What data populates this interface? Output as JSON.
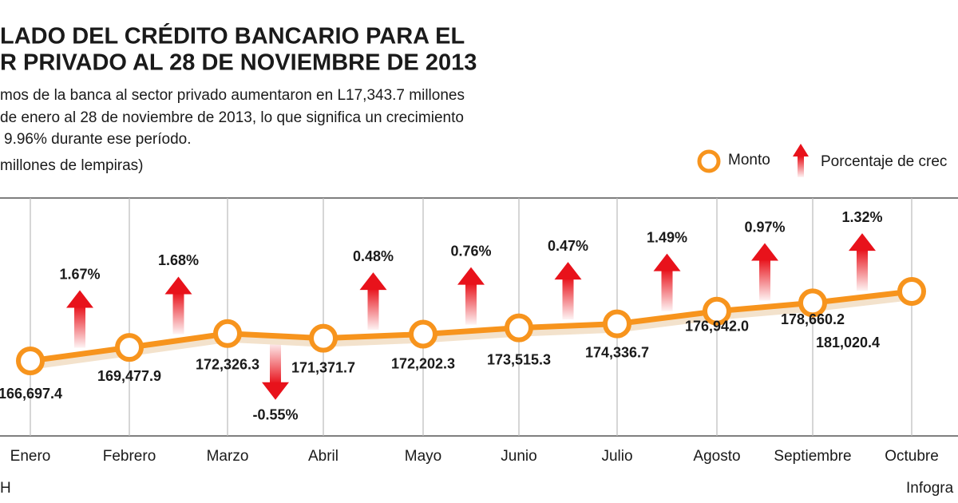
{
  "chart_data": {
    "type": "line",
    "title": [
      "LADO DEL CRÉDITO BANCARIO PARA EL",
      "R PRIVADO AL 28 DE NOVIEMBRE DE 2013"
    ],
    "subtitle": [
      "mos de la banca al sector privado aumentaron en L17,343.7 millones",
      "de enero al 28 de noviembre de 2013, lo que significa un crecimiento",
      "9.96% durante ese período."
    ],
    "unit_note": "millones de lempiras)",
    "categories": [
      "Enero",
      "Febrero",
      "Marzo",
      "Abril",
      "Mayo",
      "Junio",
      "Julio",
      "Agosto",
      "Septiembre",
      "Octubre"
    ],
    "series": [
      {
        "name": "Monto",
        "color": "#f7941d",
        "values": [
          166697.4,
          169477.9,
          172326.3,
          171371.7,
          172202.3,
          173515.3,
          174336.7,
          176942.0,
          178660.2,
          181020.4
        ],
        "value_labels": [
          "166,697.4",
          "169,477.9",
          "172,326.3",
          "171,371.7",
          "172,202.3",
          "173,515.3",
          "174,336.7",
          "176,942.0",
          "178,660.2",
          "181,020.4"
        ]
      },
      {
        "name": "Porcentaje de crec",
        "color": "#e8121b",
        "values": [
          null,
          1.67,
          1.68,
          -0.55,
          0.48,
          0.76,
          0.47,
          1.49,
          0.97,
          1.32
        ],
        "value_labels": [
          null,
          "1.67%",
          "1.68%",
          "-0.55%",
          "0.48%",
          "0.76%",
          "0.47%",
          "1.49%",
          "0.97%",
          "1.32%"
        ]
      }
    ],
    "grid": true,
    "footer": [
      "H",
      "Infogra"
    ]
  }
}
